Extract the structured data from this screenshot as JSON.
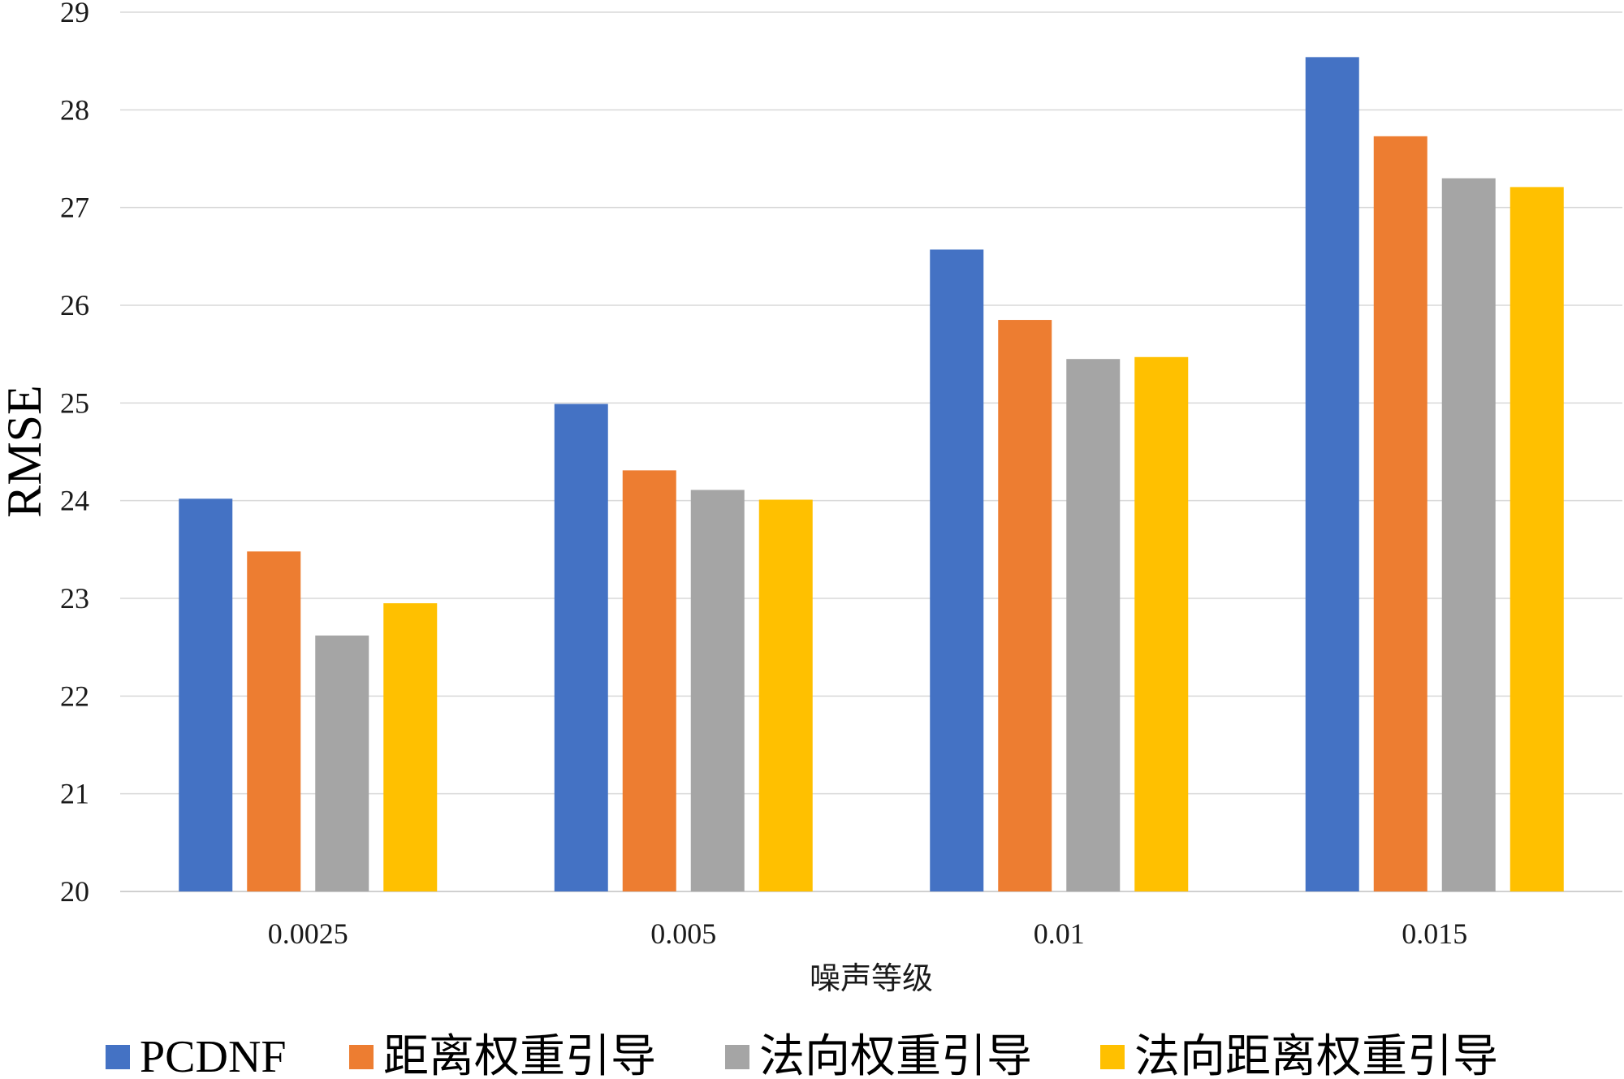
{
  "chart_data": {
    "type": "bar",
    "title": "",
    "xlabel": "噪声等级",
    "ylabel": "RMSE",
    "ylim": [
      20,
      29
    ],
    "yticks": [
      "20",
      "21",
      "22",
      "23",
      "24",
      "25",
      "26",
      "27",
      "28",
      "29"
    ],
    "grid": true,
    "legend_position": "bottom",
    "categories": [
      "0.0025",
      "0.005",
      "0.01",
      "0.015"
    ],
    "series": [
      {
        "name": "PCDNF",
        "color": "#4472C4",
        "values": [
          24.02,
          24.99,
          26.57,
          28.54
        ]
      },
      {
        "name": "距离权重引导",
        "color": "#ED7D31",
        "values": [
          23.48,
          24.31,
          25.85,
          27.73
        ]
      },
      {
        "name": "法向权重引导",
        "color": "#A5A5A5",
        "values": [
          22.62,
          24.11,
          25.45,
          27.3
        ]
      },
      {
        "name": "法向距离权重引导",
        "color": "#FFC000",
        "values": [
          22.95,
          24.01,
          25.47,
          27.21
        ]
      }
    ]
  }
}
